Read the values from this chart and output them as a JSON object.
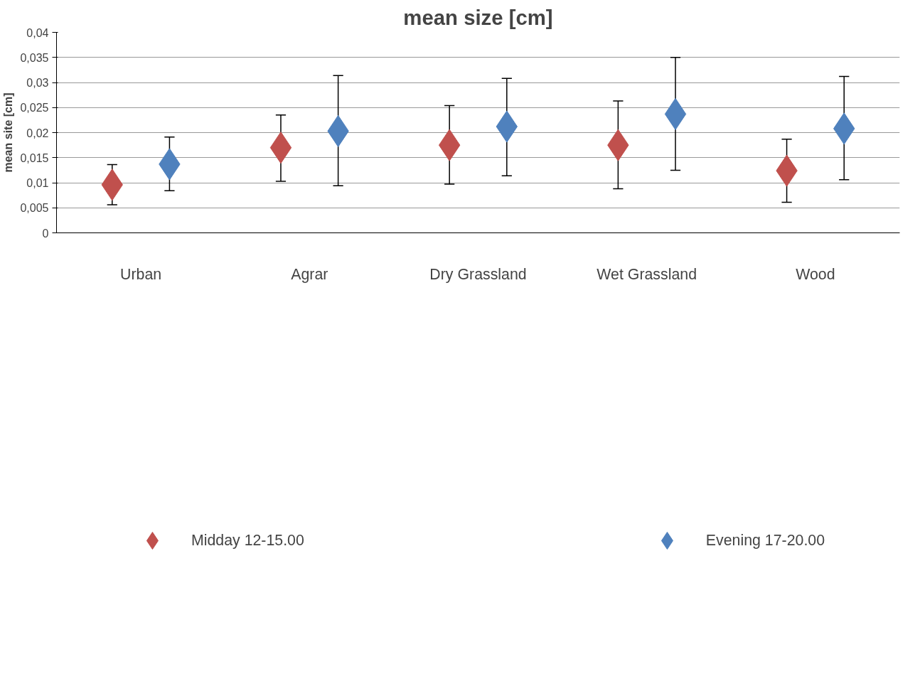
{
  "chart_data": {
    "type": "scatter",
    "title": "mean size [cm]",
    "ylabel": "mean site [cm]",
    "categories": [
      "Urban",
      "Agrar",
      "Dry Grassland",
      "Wet Grassland",
      "Wood"
    ],
    "series": [
      {
        "name": "Midday 12-15.00",
        "color": "#c0504d",
        "values": [
          0.0096,
          0.017,
          0.0175,
          0.0175,
          0.0124
        ],
        "errors": [
          [
            0.0056,
            0.0136
          ],
          [
            0.0103,
            0.0235
          ],
          [
            0.0097,
            0.0254
          ],
          [
            0.0088,
            0.0263
          ],
          [
            0.0061,
            0.0187
          ]
        ]
      },
      {
        "name": "Evening 17-20.00",
        "color": "#4f81bd",
        "values": [
          0.0137,
          0.0203,
          0.0212,
          0.0237,
          0.0208
        ],
        "errors": [
          [
            0.0084,
            0.0191
          ],
          [
            0.0094,
            0.0314
          ],
          [
            0.0114,
            0.0308
          ],
          [
            0.0125,
            0.035
          ],
          [
            0.0106,
            0.0312
          ]
        ]
      }
    ],
    "ylim": [
      0,
      0.04
    ],
    "yticks": [
      0,
      {
        "value": 0.005,
        "label": "0,005"
      },
      {
        "value": 0.01,
        "label": "0,01"
      },
      {
        "value": 0.015,
        "label": "0,015"
      },
      {
        "value": 0.02,
        "label": "0,02"
      },
      {
        "value": 0.025,
        "label": "0,025"
      },
      {
        "value": 0.03,
        "label": "0,03"
      },
      {
        "value": 0.035,
        "label": "0,035"
      },
      {
        "value": 0.04,
        "label": "0,04"
      }
    ],
    "grid": "y",
    "marker": "diamond",
    "legend": "bottom"
  }
}
